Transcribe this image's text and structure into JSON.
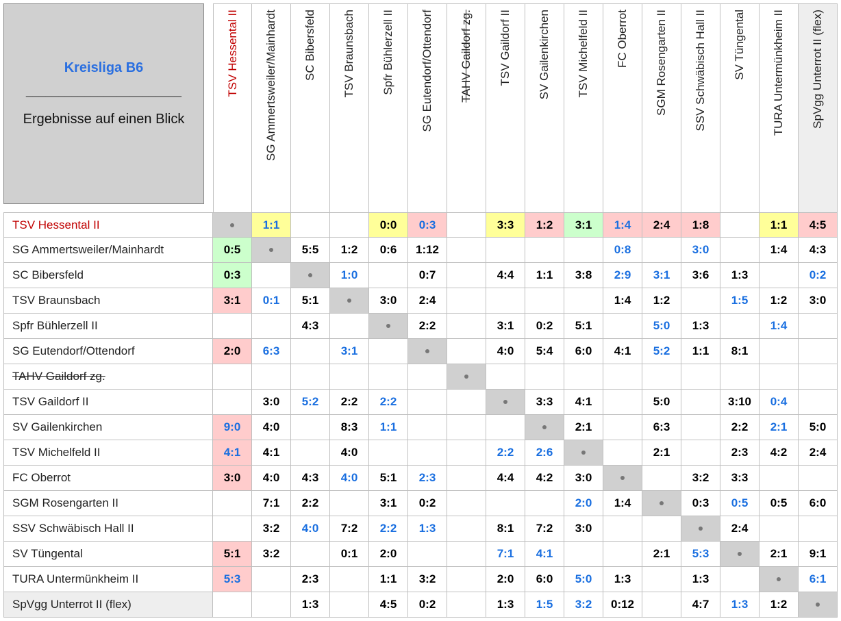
{
  "header": {
    "title": "Kreisliga B6",
    "divider": "________________________",
    "subtitle": "Ergebnisse auf einen Blick"
  },
  "teams": [
    {
      "name": "TSV Hessental II",
      "color": "#c00000"
    },
    {
      "name": "SG Ammertsweiler/Mainhardt"
    },
    {
      "name": "SC Bibersfeld"
    },
    {
      "name": "TSV Braunsbach"
    },
    {
      "name": "Spfr Bühlerzell II"
    },
    {
      "name": "SG Eutendorf/Ottendorf"
    },
    {
      "name": "TAHV Gaildorf zg.",
      "strike": true
    },
    {
      "name": "TSV Gaildorf II"
    },
    {
      "name": "SV Gailenkirchen"
    },
    {
      "name": "TSV Michelfeld II"
    },
    {
      "name": "FC Oberrot"
    },
    {
      "name": "SGM Rosengarten II"
    },
    {
      "name": "SSV Schwäbisch Hall II"
    },
    {
      "name": "SV Tüngental"
    },
    {
      "name": "TURA Untermünkheim II"
    },
    {
      "name": "SpVgg Unterrot II (flex)",
      "bg": "#eeeeee"
    }
  ],
  "colors": {
    "Y": "#ffff99",
    "R": "#ffcccc",
    "G": "#ccffcc",
    "blue": "#1a6fe0",
    "diag": "#d0d0d0"
  },
  "results": [
    [
      null,
      {
        "s": "1:1",
        "bg": "Y",
        "blue": true
      },
      null,
      null,
      {
        "s": "0:0",
        "bg": "Y"
      },
      {
        "s": "0:3",
        "bg": "R",
        "blue": true
      },
      null,
      {
        "s": "3:3",
        "bg": "Y"
      },
      {
        "s": "1:2",
        "bg": "R"
      },
      {
        "s": "3:1",
        "bg": "G"
      },
      {
        "s": "1:4",
        "bg": "R",
        "blue": true
      },
      {
        "s": "2:4",
        "bg": "R"
      },
      {
        "s": "1:8",
        "bg": "R"
      },
      null,
      {
        "s": "1:1",
        "bg": "Y"
      },
      {
        "s": "4:5",
        "bg": "R"
      }
    ],
    [
      {
        "s": "0:5",
        "bg": "G"
      },
      null,
      {
        "s": "5:5"
      },
      {
        "s": "1:2"
      },
      {
        "s": "0:6"
      },
      {
        "s": "1:12"
      },
      null,
      null,
      null,
      null,
      {
        "s": "0:8",
        "blue": true
      },
      null,
      {
        "s": "3:0",
        "blue": true
      },
      null,
      {
        "s": "1:4"
      },
      {
        "s": "4:3"
      }
    ],
    [
      {
        "s": "0:3",
        "bg": "G"
      },
      null,
      null,
      {
        "s": "1:0",
        "blue": true
      },
      null,
      {
        "s": "0:7"
      },
      null,
      {
        "s": "4:4"
      },
      {
        "s": "1:1"
      },
      {
        "s": "3:8"
      },
      {
        "s": "2:9",
        "blue": true
      },
      {
        "s": "3:1",
        "blue": true
      },
      {
        "s": "3:6"
      },
      {
        "s": "1:3"
      },
      null,
      {
        "s": "0:2",
        "blue": true
      }
    ],
    [
      {
        "s": "3:1",
        "bg": "R"
      },
      {
        "s": "0:1",
        "blue": true
      },
      {
        "s": "5:1"
      },
      null,
      {
        "s": "3:0"
      },
      {
        "s": "2:4"
      },
      null,
      null,
      null,
      null,
      {
        "s": "1:4"
      },
      {
        "s": "1:2"
      },
      null,
      {
        "s": "1:5",
        "blue": true
      },
      {
        "s": "1:2"
      },
      {
        "s": "3:0"
      }
    ],
    [
      null,
      null,
      {
        "s": "4:3"
      },
      null,
      null,
      {
        "s": "2:2"
      },
      null,
      {
        "s": "3:1"
      },
      {
        "s": "0:2"
      },
      {
        "s": "5:1"
      },
      null,
      {
        "s": "5:0",
        "blue": true
      },
      {
        "s": "1:3"
      },
      null,
      {
        "s": "1:4",
        "blue": true
      },
      null
    ],
    [
      {
        "s": "2:0",
        "bg": "R"
      },
      {
        "s": "6:3",
        "blue": true
      },
      null,
      {
        "s": "3:1",
        "blue": true
      },
      null,
      null,
      null,
      {
        "s": "4:0"
      },
      {
        "s": "5:4"
      },
      {
        "s": "6:0"
      },
      {
        "s": "4:1"
      },
      {
        "s": "5:2",
        "blue": true
      },
      {
        "s": "1:1"
      },
      {
        "s": "8:1"
      },
      null,
      null
    ],
    [
      null,
      null,
      null,
      null,
      null,
      null,
      null,
      null,
      null,
      null,
      null,
      null,
      null,
      null,
      null,
      null
    ],
    [
      null,
      {
        "s": "3:0"
      },
      {
        "s": "5:2",
        "blue": true
      },
      {
        "s": "2:2"
      },
      {
        "s": "2:2",
        "blue": true
      },
      null,
      null,
      null,
      {
        "s": "3:3"
      },
      {
        "s": "4:1"
      },
      null,
      {
        "s": "5:0"
      },
      null,
      {
        "s": "3:10"
      },
      {
        "s": "0:4",
        "blue": true
      },
      null
    ],
    [
      {
        "s": "9:0",
        "bg": "R",
        "blue": true
      },
      {
        "s": "4:0"
      },
      null,
      {
        "s": "8:3"
      },
      {
        "s": "1:1",
        "blue": true
      },
      null,
      null,
      null,
      null,
      {
        "s": "2:1"
      },
      null,
      {
        "s": "6:3"
      },
      null,
      {
        "s": "2:2"
      },
      {
        "s": "2:1",
        "blue": true
      },
      {
        "s": "5:0"
      }
    ],
    [
      {
        "s": "4:1",
        "bg": "R",
        "blue": true
      },
      {
        "s": "4:1"
      },
      null,
      {
        "s": "4:0"
      },
      null,
      null,
      null,
      {
        "s": "2:2",
        "blue": true
      },
      {
        "s": "2:6",
        "blue": true
      },
      null,
      null,
      {
        "s": "2:1"
      },
      null,
      {
        "s": "2:3"
      },
      {
        "s": "4:2"
      },
      {
        "s": "2:4"
      }
    ],
    [
      {
        "s": "3:0",
        "bg": "R"
      },
      {
        "s": "4:0"
      },
      {
        "s": "4:3"
      },
      {
        "s": "4:0",
        "blue": true
      },
      {
        "s": "5:1"
      },
      {
        "s": "2:3",
        "blue": true
      },
      null,
      {
        "s": "4:4"
      },
      {
        "s": "4:2"
      },
      {
        "s": "3:0"
      },
      null,
      null,
      {
        "s": "3:2"
      },
      {
        "s": "3:3"
      },
      null,
      null
    ],
    [
      null,
      {
        "s": "7:1"
      },
      {
        "s": "2:2"
      },
      null,
      {
        "s": "3:1"
      },
      {
        "s": "0:2"
      },
      null,
      null,
      null,
      {
        "s": "2:0",
        "blue": true
      },
      {
        "s": "1:4"
      },
      null,
      {
        "s": "0:3"
      },
      {
        "s": "0:5",
        "blue": true
      },
      {
        "s": "0:5"
      },
      {
        "s": "6:0"
      }
    ],
    [
      null,
      {
        "s": "3:2"
      },
      {
        "s": "4:0",
        "blue": true
      },
      {
        "s": "7:2"
      },
      {
        "s": "2:2",
        "blue": true
      },
      {
        "s": "1:3",
        "blue": true
      },
      null,
      {
        "s": "8:1"
      },
      {
        "s": "7:2"
      },
      {
        "s": "3:0"
      },
      null,
      null,
      null,
      {
        "s": "2:4"
      },
      null,
      null
    ],
    [
      {
        "s": "5:1",
        "bg": "R"
      },
      {
        "s": "3:2"
      },
      null,
      {
        "s": "0:1"
      },
      {
        "s": "2:0"
      },
      null,
      null,
      {
        "s": "7:1",
        "blue": true
      },
      {
        "s": "4:1",
        "blue": true
      },
      null,
      null,
      {
        "s": "2:1"
      },
      {
        "s": "5:3",
        "blue": true
      },
      null,
      {
        "s": "2:1"
      },
      {
        "s": "9:1"
      }
    ],
    [
      {
        "s": "5:3",
        "bg": "R",
        "blue": true
      },
      null,
      {
        "s": "2:3"
      },
      null,
      {
        "s": "1:1"
      },
      {
        "s": "3:2"
      },
      null,
      {
        "s": "2:0"
      },
      {
        "s": "6:0"
      },
      {
        "s": "5:0",
        "blue": true
      },
      {
        "s": "1:3"
      },
      null,
      {
        "s": "1:3"
      },
      null,
      null,
      {
        "s": "6:1",
        "blue": true
      }
    ],
    [
      null,
      null,
      {
        "s": "1:3"
      },
      null,
      {
        "s": "4:5"
      },
      {
        "s": "0:2"
      },
      null,
      {
        "s": "1:3"
      },
      {
        "s": "1:5",
        "blue": true
      },
      {
        "s": "3:2",
        "blue": true
      },
      {
        "s": "0:12"
      },
      null,
      {
        "s": "4:7"
      },
      {
        "s": "1:3",
        "blue": true
      },
      {
        "s": "1:2"
      },
      null
    ]
  ]
}
